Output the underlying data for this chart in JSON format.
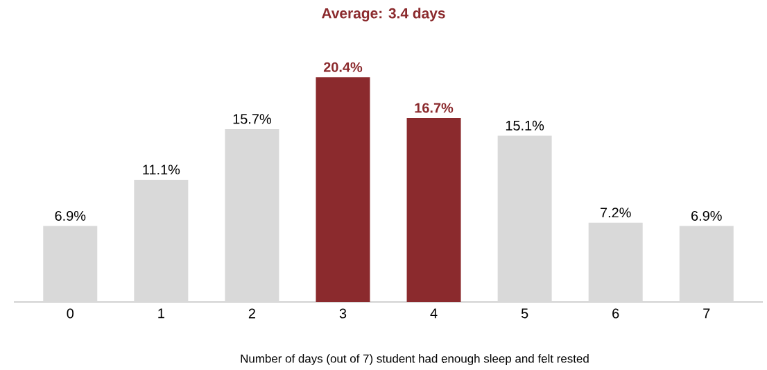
{
  "chart_data": {
    "type": "bar",
    "title": "Average: 3.4 days",
    "xlabel": "Number of days (out of 7) student had enough sleep and felt rested",
    "categories": [
      "0",
      "1",
      "2",
      "3",
      "4",
      "5",
      "6",
      "7"
    ],
    "values": [
      6.9,
      11.1,
      15.7,
      20.4,
      16.7,
      15.1,
      7.2,
      6.9
    ],
    "colors": [
      "#d9d9d9",
      "#d9d9d9",
      "#d9d9d9",
      "#8b2a2d",
      "#8b2a2d",
      "#d9d9d9",
      "#d9d9d9",
      "#d9d9d9"
    ],
    "value_labels": [
      "6.9%",
      "11.1%",
      "15.7%",
      "20.4%",
      "16.7%",
      "15.1%",
      "7.2%",
      "6.9%"
    ]
  }
}
